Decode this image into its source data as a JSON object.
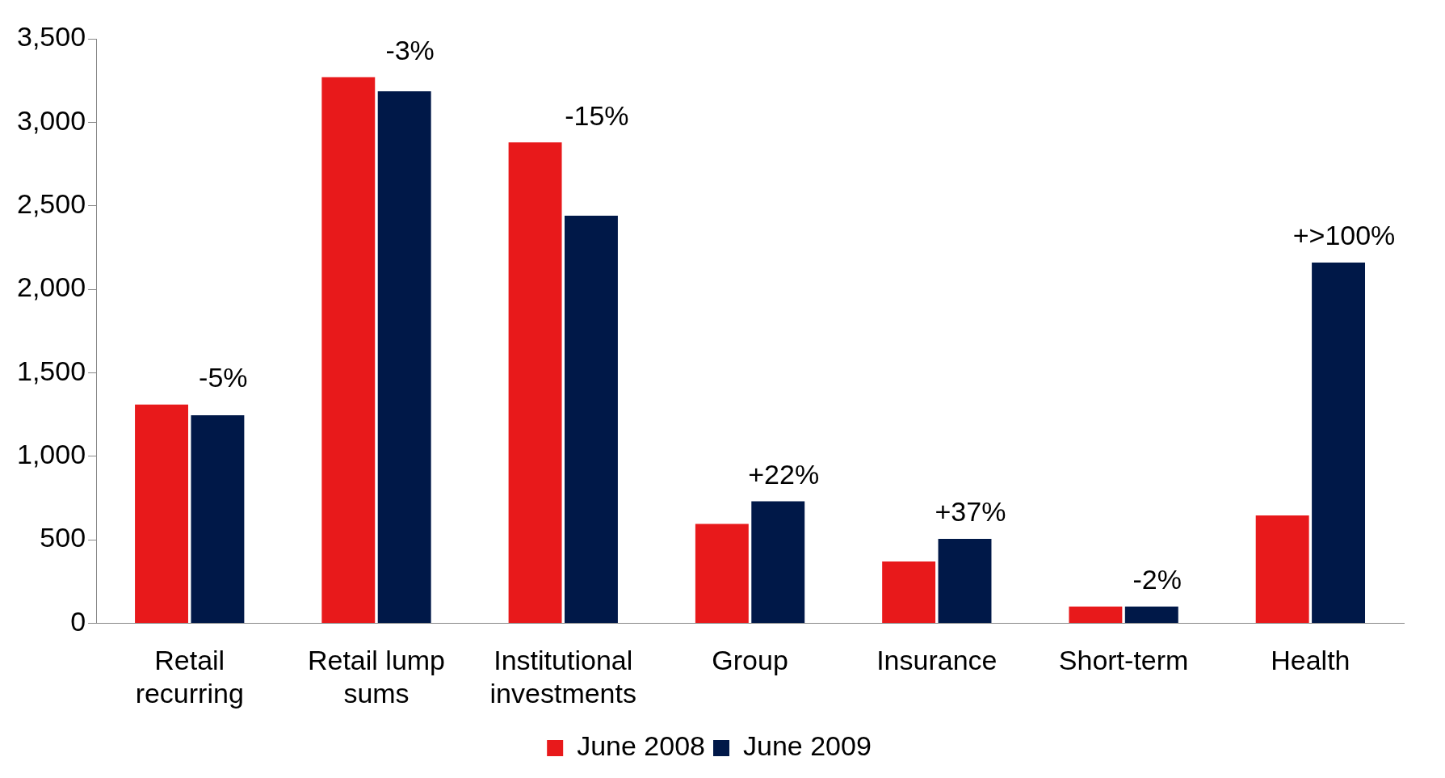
{
  "chart_data": {
    "type": "bar",
    "categories": [
      "Retail recurring",
      "Retail lump sums",
      "Institutional investments",
      "Group",
      "Insurance",
      "Short-term",
      "Health"
    ],
    "series": [
      {
        "name": "June 2008",
        "color": "#e8191b",
        "values": [
          1310,
          3270,
          2880,
          595,
          370,
          100,
          645
        ]
      },
      {
        "name": "June 2009",
        "color": "#001848",
        "values": [
          1245,
          3185,
          2440,
          730,
          505,
          100,
          2160
        ]
      }
    ],
    "ylim": [
      0,
      3500
    ],
    "yticks": [
      {
        "value": 0,
        "label": "0"
      },
      {
        "value": 500,
        "label": "500"
      },
      {
        "value": 1000,
        "label": "1,000"
      },
      {
        "value": 1500,
        "label": "1,500"
      },
      {
        "value": 2000,
        "label": "2,000"
      },
      {
        "value": 2500,
        "label": "2,500"
      },
      {
        "value": 3000,
        "label": "3,000"
      },
      {
        "value": 3500,
        "label": "3,500"
      }
    ],
    "grid": false,
    "legend": "bottom",
    "annotations": [
      {
        "text": "-5%",
        "x": "Retail recurring",
        "y": 1310
      },
      {
        "text": "-3%",
        "x": "Retail lump sums",
        "y": 3270
      },
      {
        "text": "-15%",
        "x": "Institutional investments",
        "y": 2880
      },
      {
        "text": "+22%",
        "x": "Group",
        "y": 730
      },
      {
        "text": "+37%",
        "x": "Insurance",
        "y": 505
      },
      {
        "text": "-2%",
        "x": "Short-term",
        "y": 100
      },
      {
        "text": "+>100%",
        "x": "Health",
        "y": 2160
      }
    ]
  }
}
